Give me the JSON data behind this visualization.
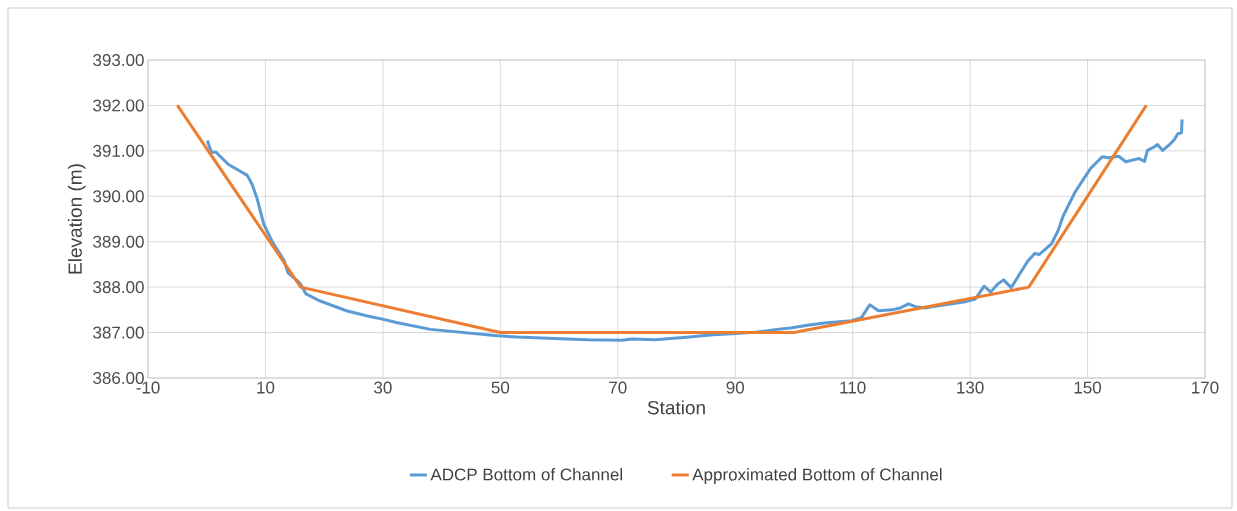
{
  "chart_data": {
    "type": "line",
    "xlabel": "Station",
    "ylabel": "Elevation (m)",
    "xlim": [
      -10,
      170
    ],
    "xticks": [
      -10,
      10,
      30,
      50,
      70,
      90,
      110,
      130,
      150,
      170
    ],
    "ylim": [
      386,
      393
    ],
    "yticks": [
      {
        "value": 386,
        "label": "386.00"
      },
      {
        "value": 387,
        "label": "387.00"
      },
      {
        "value": 388,
        "label": "388.00"
      },
      {
        "value": 389,
        "label": "389.00"
      },
      {
        "value": 390,
        "label": "390.00"
      },
      {
        "value": 391,
        "label": "391.00"
      },
      {
        "value": 392,
        "label": "392.00"
      },
      {
        "value": 393,
        "label": "393.00"
      }
    ],
    "grid": true,
    "legend": "bottom",
    "marker": "none",
    "line_style": "solid",
    "series": [
      {
        "name": "ADCP Bottom of Channel",
        "color": "#5b9bd5",
        "x": [
          0.1,
          0.8,
          1.6,
          3.7,
          6.0,
          6.9,
          7.7,
          8.6,
          9.7,
          11.2,
          13.2,
          13.8,
          15.8,
          16.3,
          16.9,
          19.2,
          23.8,
          27.2,
          30.1,
          32.3,
          38.1,
          43.8,
          49.5,
          52.9,
          59.2,
          64.9,
          70.7,
          72.4,
          76.4,
          82.2,
          86.2,
          90.2,
          93.7,
          97.1,
          99.4,
          102.3,
          105.2,
          109.8,
          111.5,
          112.9,
          114.4,
          116.7,
          118.1,
          119.5,
          120.7,
          122.4,
          123.2,
          128.9,
          130.9,
          132.4,
          133.5,
          134.7,
          135.7,
          137.0,
          139.8,
          141.0,
          141.8,
          143.9,
          145.0,
          145.9,
          147.9,
          150.5,
          152.5,
          153.6,
          155.3,
          156.5,
          158.8,
          159.7,
          160.2,
          161.4,
          161.9,
          162.8,
          163.9,
          164.8,
          165.4,
          166.0,
          166.1
        ],
        "values": [
          391.23,
          390.97,
          390.97,
          390.7,
          390.53,
          390.46,
          390.27,
          389.94,
          389.39,
          388.99,
          388.58,
          388.32,
          388.1,
          387.99,
          387.85,
          387.7,
          387.48,
          387.37,
          387.29,
          387.22,
          387.07,
          387.0,
          386.93,
          386.9,
          386.87,
          386.84,
          386.83,
          386.86,
          386.84,
          386.9,
          386.95,
          386.98,
          387.01,
          387.07,
          387.1,
          387.16,
          387.21,
          387.26,
          387.33,
          387.61,
          387.48,
          387.5,
          387.54,
          387.63,
          387.57,
          387.54,
          387.56,
          387.67,
          387.74,
          388.02,
          387.89,
          388.07,
          388.16,
          387.99,
          388.57,
          388.74,
          388.72,
          388.96,
          389.25,
          389.58,
          390.1,
          390.61,
          390.87,
          390.85,
          390.88,
          390.76,
          390.83,
          390.77,
          391.01,
          391.09,
          391.14,
          391.01,
          391.13,
          391.25,
          391.38,
          391.4,
          391.69
        ]
      },
      {
        "name": "Approximated Bottom of Channel",
        "color": "#ed7d31",
        "x": [
          -5,
          16,
          50,
          100,
          140,
          160
        ],
        "values": [
          392,
          388,
          387,
          387,
          388,
          392
        ]
      }
    ]
  }
}
